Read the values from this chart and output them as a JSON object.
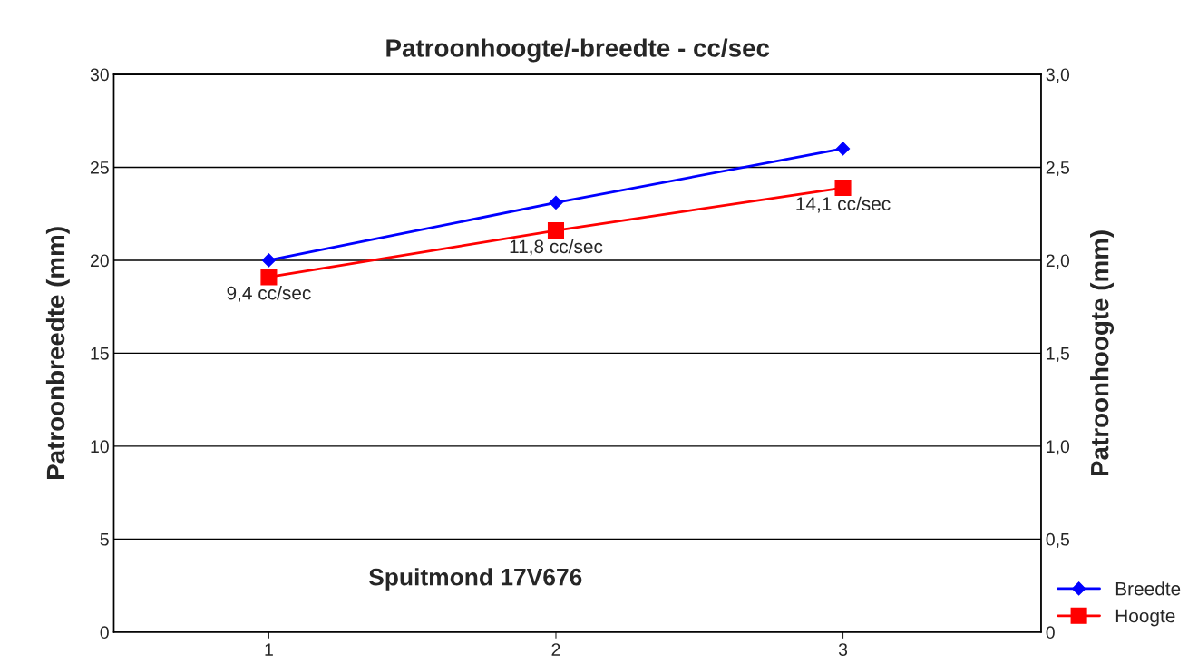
{
  "chart_data": {
    "type": "line",
    "title": "Patroonhoogte/-breedte - cc/sec",
    "ylabel": "Patroonbreedte (mm)",
    "y2label": "Patroonhoogte (mm)",
    "x": [
      1,
      2,
      3
    ],
    "xlim": [
      0.46,
      3.69
    ],
    "xticks": [
      1,
      2,
      3
    ],
    "ylim": [
      0,
      30
    ],
    "yticks": [
      0,
      5,
      10,
      15,
      20,
      25,
      30
    ],
    "y2lim": [
      0,
      3.0
    ],
    "y2ticks": [
      {
        "value": 0,
        "label": "0"
      },
      {
        "value": 0.5,
        "label": "0,5"
      },
      {
        "value": 1.0,
        "label": "1,0"
      },
      {
        "value": 1.5,
        "label": "1,5"
      },
      {
        "value": 2.0,
        "label": "2,0"
      },
      {
        "value": 2.5,
        "label": "2,5"
      },
      {
        "value": 3.0,
        "label": "3,0"
      }
    ],
    "series": [
      {
        "name": "Breedte",
        "color": "#0000ff",
        "values": [
          20.0,
          23.1,
          26.0
        ],
        "marker": "diamond"
      },
      {
        "name": "Hoogte",
        "color": "#ff0000",
        "values": [
          1.91,
          2.16,
          2.39
        ],
        "marker": "square",
        "axis": "y2"
      }
    ],
    "annotations": [
      "9,4 cc/sec",
      "11,8 cc/sec",
      "14,1 cc/sec",
      "Spuitmond 17V676"
    ],
    "grid": "y",
    "legend": "bottom right"
  }
}
